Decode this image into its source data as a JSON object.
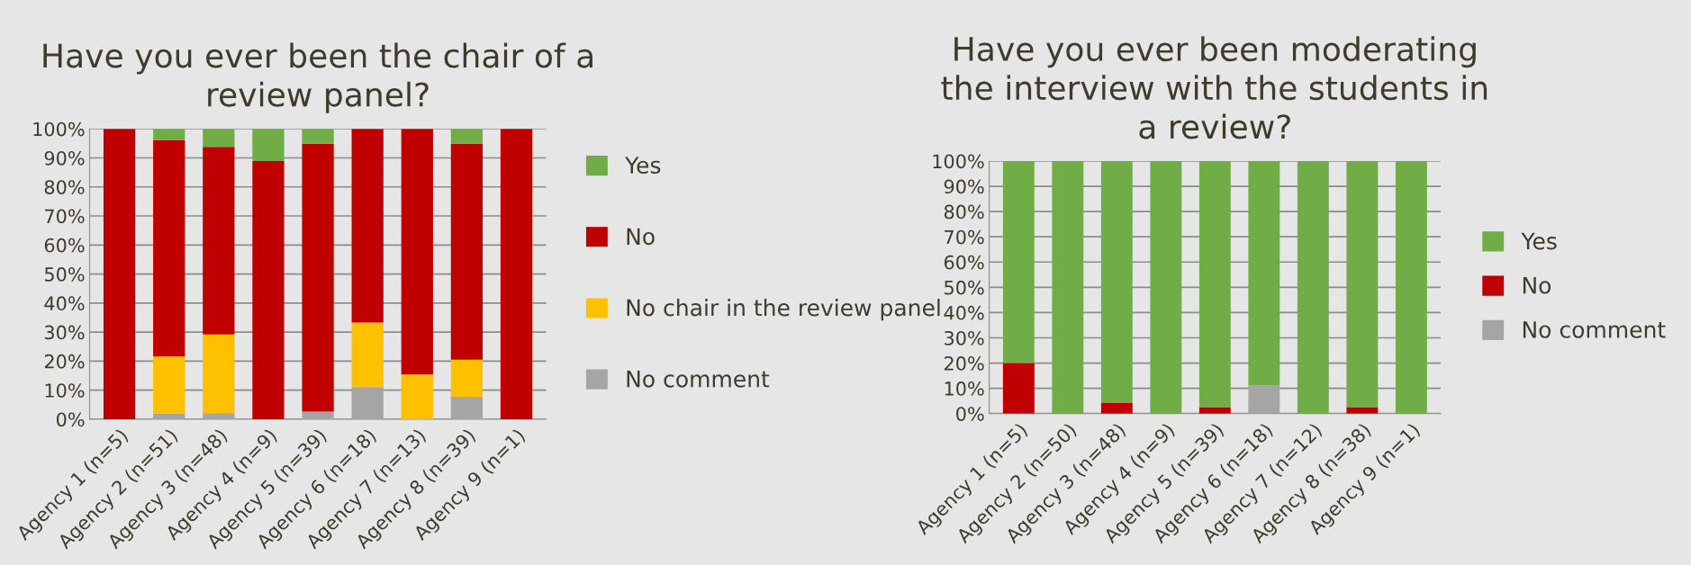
{
  "chart_data": [
    {
      "type": "bar",
      "stacked": true,
      "title": "Have you ever been the chair of a\nreview panel?",
      "categories": [
        "Agency 1 (n=5)",
        "Agency 2 (n=51)",
        "Agency 3 (n=48)",
        "Agency 4 (n=9)",
        "Agency 5 (n=39)",
        "Agency 6 (n=18)",
        "Agency 7 (n=13)",
        "Agency 8 (n=39)",
        "Agency 9 (n=1)"
      ],
      "series": [
        {
          "name": "No comment",
          "color": "#a5a5a5",
          "values": [
            0,
            2.0,
            2.1,
            0,
            2.6,
            11.1,
            0,
            7.7,
            0
          ]
        },
        {
          "name": "No chair in the review panel",
          "color": "#ffc000",
          "values": [
            0,
            19.6,
            27.1,
            0,
            0,
            22.2,
            15.4,
            12.8,
            0
          ]
        },
        {
          "name": "No",
          "color": "#c00000",
          "values": [
            100,
            74.5,
            64.6,
            88.9,
            92.3,
            66.7,
            84.6,
            74.4,
            100
          ]
        },
        {
          "name": "Yes",
          "color": "#70ad47",
          "values": [
            0,
            3.9,
            6.2,
            11.1,
            5.1,
            0,
            0,
            5.1,
            0
          ]
        }
      ],
      "ylim": [
        0,
        100
      ],
      "yticks": [
        {
          "value": 0,
          "label": "0%"
        },
        {
          "value": 10,
          "label": "10%"
        },
        {
          "value": 20,
          "label": "20%"
        },
        {
          "value": 30,
          "label": "30%"
        },
        {
          "value": 40,
          "label": "40%"
        },
        {
          "value": 50,
          "label": "50%"
        },
        {
          "value": 60,
          "label": "60%"
        },
        {
          "value": 70,
          "label": "70%"
        },
        {
          "value": 80,
          "label": "80%"
        },
        {
          "value": 90,
          "label": "90%"
        },
        {
          "value": 100,
          "label": "100%"
        }
      ],
      "grid": "y",
      "legend": "right"
    },
    {
      "type": "bar",
      "stacked": true,
      "title": "Have you ever been moderating\nthe interview with the students in\na review?",
      "categories": [
        "Agency 1 (n=5)",
        "Agency 2 (n=50)",
        "Agency 3 (n=48)",
        "Agency 4 (n=9)",
        "Agency 5 (n=39)",
        "Agency 6 (n=18)",
        "Agency 7 (n=12)",
        "Agency 8 (n=38)",
        "Agency 9 (n=1)"
      ],
      "series": [
        {
          "name": "No comment",
          "color": "#a5a5a5",
          "values": [
            0,
            0,
            0,
            0,
            0,
            11.1,
            0,
            0,
            0
          ]
        },
        {
          "name": "No",
          "color": "#c00000",
          "values": [
            20,
            0,
            4.2,
            0,
            2.6,
            0,
            0,
            2.6,
            0
          ]
        },
        {
          "name": "Yes",
          "color": "#70ad47",
          "values": [
            80,
            100,
            95.8,
            100,
            97.4,
            88.9,
            100,
            97.4,
            100
          ]
        }
      ],
      "ylim": [
        0,
        100
      ],
      "yticks": [
        {
          "value": 0,
          "label": "0%"
        },
        {
          "value": 10,
          "label": "10%"
        },
        {
          "value": 20,
          "label": "20%"
        },
        {
          "value": 30,
          "label": "30%"
        },
        {
          "value": 40,
          "label": "40%"
        },
        {
          "value": 50,
          "label": "50%"
        },
        {
          "value": 60,
          "label": "60%"
        },
        {
          "value": 70,
          "label": "70%"
        },
        {
          "value": 80,
          "label": "80%"
        },
        {
          "value": 90,
          "label": "90%"
        },
        {
          "value": 100,
          "label": "100%"
        }
      ],
      "grid": "y",
      "legend": "right"
    }
  ]
}
